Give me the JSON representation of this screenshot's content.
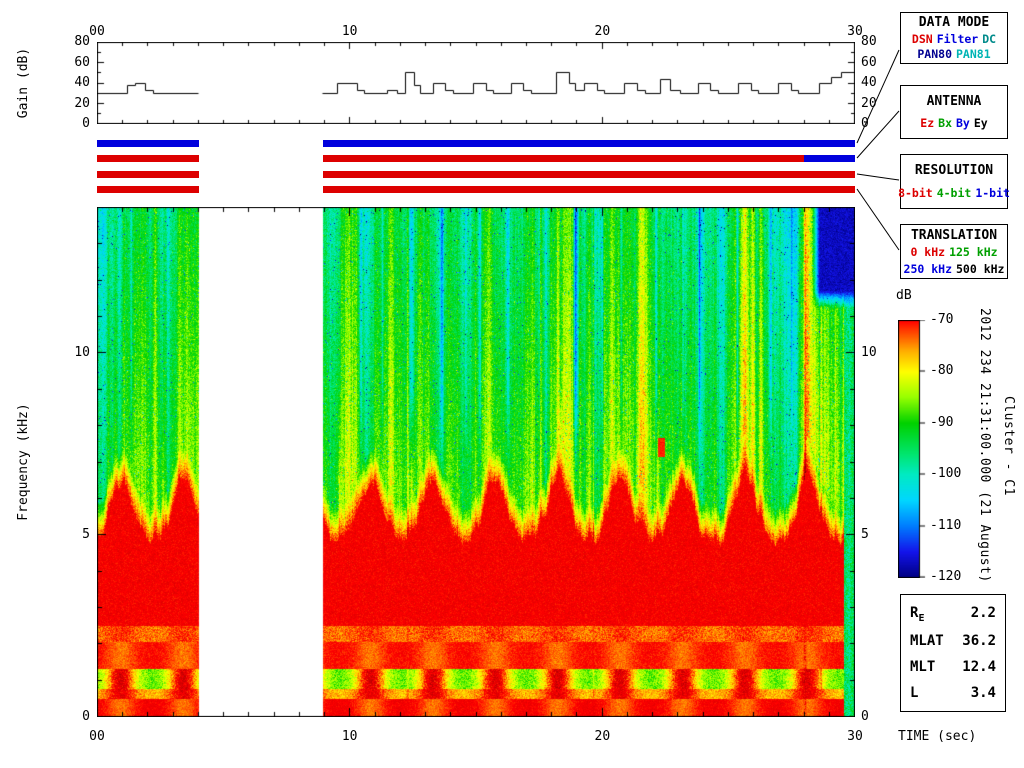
{
  "annotations": {
    "datetime_vertical": "2012 234 21:31:00.000 (21 August)",
    "spacecraft_vertical": "Cluster - C1"
  },
  "chart_data": [
    {
      "id": "gain",
      "type": "line",
      "title": "",
      "ylabel": "Gain (dB)",
      "xlabel": "",
      "ylim": [
        0,
        80
      ],
      "xlim": [
        0,
        30
      ],
      "yticks": [
        "0",
        "20",
        "40",
        "60",
        "80"
      ],
      "xticks": [
        "00",
        "10",
        "20",
        "30"
      ],
      "line_style": "step",
      "segments": [
        [
          [
            0,
            30
          ],
          [
            1.2,
            30
          ],
          [
            1.2,
            38
          ],
          [
            1.5,
            38
          ],
          [
            1.5,
            40
          ],
          [
            1.9,
            40
          ],
          [
            1.9,
            33
          ],
          [
            2.2,
            33
          ],
          [
            2.2,
            30
          ],
          [
            4.02,
            30
          ]
        ],
        [
          [
            8.93,
            30
          ],
          [
            9.5,
            30
          ],
          [
            9.5,
            40
          ],
          [
            10.3,
            40
          ],
          [
            10.3,
            33
          ],
          [
            10.6,
            33
          ],
          [
            10.6,
            30
          ],
          [
            11.5,
            30
          ],
          [
            11.5,
            33
          ],
          [
            11.9,
            33
          ],
          [
            11.9,
            30
          ],
          [
            12.2,
            30
          ],
          [
            12.2,
            50
          ],
          [
            12.55,
            50
          ],
          [
            12.55,
            38
          ],
          [
            12.8,
            38
          ],
          [
            12.8,
            30
          ],
          [
            13.3,
            30
          ],
          [
            13.3,
            40
          ],
          [
            13.8,
            40
          ],
          [
            13.8,
            33
          ],
          [
            14.1,
            33
          ],
          [
            14.1,
            30
          ],
          [
            14.9,
            30
          ],
          [
            14.9,
            40
          ],
          [
            15.4,
            40
          ],
          [
            15.4,
            33
          ],
          [
            15.7,
            33
          ],
          [
            15.7,
            30
          ],
          [
            16.4,
            30
          ],
          [
            16.4,
            40
          ],
          [
            16.9,
            40
          ],
          [
            16.9,
            33
          ],
          [
            17.2,
            33
          ],
          [
            17.2,
            30
          ],
          [
            18.2,
            30
          ],
          [
            18.2,
            50
          ],
          [
            18.7,
            50
          ],
          [
            18.7,
            40
          ],
          [
            18.95,
            40
          ],
          [
            18.95,
            33
          ],
          [
            19.3,
            33
          ],
          [
            19.3,
            40
          ],
          [
            19.8,
            40
          ],
          [
            19.8,
            33
          ],
          [
            20.1,
            33
          ],
          [
            20.1,
            30
          ],
          [
            20.9,
            30
          ],
          [
            20.9,
            40
          ],
          [
            21.4,
            40
          ],
          [
            21.4,
            33
          ],
          [
            21.7,
            33
          ],
          [
            21.7,
            30
          ],
          [
            22.3,
            30
          ],
          [
            22.3,
            43
          ],
          [
            22.7,
            43
          ],
          [
            22.7,
            33
          ],
          [
            23.1,
            33
          ],
          [
            23.1,
            30
          ],
          [
            23.8,
            30
          ],
          [
            23.8,
            40
          ],
          [
            24.3,
            40
          ],
          [
            24.3,
            33
          ],
          [
            24.6,
            33
          ],
          [
            24.6,
            30
          ],
          [
            25.4,
            30
          ],
          [
            25.4,
            40
          ],
          [
            25.9,
            40
          ],
          [
            25.9,
            33
          ],
          [
            26.2,
            33
          ],
          [
            26.2,
            30
          ],
          [
            27.0,
            30
          ],
          [
            27.0,
            40
          ],
          [
            27.5,
            40
          ],
          [
            27.5,
            33
          ],
          [
            27.8,
            33
          ],
          [
            27.8,
            30
          ],
          [
            28.6,
            30
          ],
          [
            28.6,
            40
          ],
          [
            29.1,
            40
          ],
          [
            29.1,
            45
          ],
          [
            29.5,
            45
          ],
          [
            29.5,
            50
          ],
          [
            30,
            50
          ]
        ]
      ]
    },
    {
      "id": "spectrogram",
      "type": "heatmap",
      "ylabel": "Frequency (kHz)",
      "xlabel": "TIME (sec)",
      "xlim": [
        0,
        30
      ],
      "ylim": [
        0,
        14
      ],
      "yticks": [
        "0",
        "5",
        "10"
      ],
      "xticks": [
        "00",
        "10",
        "20",
        "30"
      ],
      "colorbar_label": "dB",
      "colorbar_ticks": [
        "-70",
        "-80",
        "-90",
        "-100",
        "-110",
        "-120"
      ],
      "db_range": [
        -120,
        -70
      ],
      "data_gap_sec": [
        4.02,
        8.93
      ],
      "mode_change_sec": 28.0,
      "modulation_period_sec": 2.47,
      "intense_band": {
        "f_top_khz_min": 4.85,
        "f_top_khz_max": 6.5,
        "db": -69
      },
      "background": {
        "db_at_7khz": -89,
        "db_at_13khz": -94
      },
      "dark_patch": {
        "t_range": [
          28.3,
          30
        ],
        "f_range": [
          11.2,
          14
        ],
        "db": -117
      },
      "red_spot": {
        "t": 22.35,
        "f": 7.4,
        "db": -71
      },
      "blue_streaks": [
        {
          "t": 1.35,
          "w": 0.07,
          "depth": 8
        },
        {
          "t": 2.6,
          "w": 0.06,
          "depth": 7
        },
        {
          "t": 9.6,
          "w": 0.06,
          "depth": 7
        },
        {
          "t": 10.45,
          "w": 0.09,
          "depth": 10
        },
        {
          "t": 11.3,
          "w": 0.07,
          "depth": 9
        },
        {
          "t": 12.45,
          "w": 0.15,
          "depth": 16
        },
        {
          "t": 13.65,
          "w": 0.1,
          "depth": 13
        },
        {
          "t": 14.6,
          "w": 0.06,
          "depth": 8
        },
        {
          "t": 15.15,
          "w": 0.07,
          "depth": 9
        },
        {
          "t": 16.25,
          "w": 0.1,
          "depth": 11
        },
        {
          "t": 17.5,
          "w": 0.06,
          "depth": 8
        },
        {
          "t": 18.35,
          "w": 0.12,
          "depth": 14
        },
        {
          "t": 18.95,
          "w": 0.13,
          "depth": 18
        },
        {
          "t": 20.0,
          "w": 0.06,
          "depth": 8
        },
        {
          "t": 20.75,
          "w": 0.08,
          "depth": 10
        },
        {
          "t": 22.15,
          "w": 0.1,
          "depth": 12
        },
        {
          "t": 23.2,
          "w": 0.06,
          "depth": 8
        },
        {
          "t": 23.85,
          "w": 0.08,
          "depth": 10
        },
        {
          "t": 25.35,
          "w": 0.08,
          "depth": 11
        },
        {
          "t": 26.65,
          "w": 0.09,
          "depth": 11
        },
        {
          "t": 27.5,
          "w": 0.06,
          "depth": 8
        }
      ],
      "bright_lines": [
        {
          "t": 12.3,
          "w": 0.06,
          "amp": 7
        },
        {
          "t": 19.65,
          "w": 0.05,
          "amp": 6
        },
        {
          "t": 28.02,
          "w": 0.08,
          "amp": 14
        },
        {
          "t": 28.66,
          "w": 0.05,
          "amp": 8
        }
      ]
    }
  ],
  "status_bars": {
    "rows": [
      {
        "name": "data-mode",
        "segments": [
          {
            "t0": 0,
            "t1": 4.02,
            "color": "#0000dd"
          },
          {
            "t0": 8.93,
            "t1": 30,
            "color": "#0000dd"
          }
        ]
      },
      {
        "name": "antenna",
        "segments": [
          {
            "t0": 0,
            "t1": 4.02,
            "color": "#dd0000"
          },
          {
            "t0": 8.93,
            "t1": 28,
            "color": "#dd0000"
          },
          {
            "t0": 28,
            "t1": 30,
            "color": "#0000dd"
          }
        ]
      },
      {
        "name": "resolution",
        "segments": [
          {
            "t0": 0,
            "t1": 4.02,
            "color": "#dd0000"
          },
          {
            "t0": 8.93,
            "t1": 30,
            "color": "#dd0000"
          }
        ]
      },
      {
        "name": "translation",
        "segments": [
          {
            "t0": 0,
            "t1": 4.02,
            "color": "#dd0000"
          },
          {
            "t0": 8.93,
            "t1": 30,
            "color": "#dd0000"
          }
        ]
      }
    ]
  },
  "legend_boxes": [
    {
      "name": "data-mode",
      "title": "DATA MODE",
      "rows": [
        [
          {
            "text": "DSN",
            "color": "#dd0000"
          },
          {
            "text": "Filter",
            "color": "#0000dd"
          },
          {
            "text": "DC",
            "color": "#008b8b"
          }
        ],
        [
          {
            "text": "PAN80",
            "color": "#000090"
          },
          {
            "text": "PAN81",
            "color": "#00b4b4"
          }
        ]
      ]
    },
    {
      "name": "antenna",
      "title": "ANTENNA",
      "rows": [
        [
          {
            "text": "Ez",
            "color": "#dd0000"
          },
          {
            "text": "Bx",
            "color": "#00a000"
          },
          {
            "text": "By",
            "color": "#0000dd"
          },
          {
            "text": "Ey",
            "color": "#000000"
          }
        ]
      ]
    },
    {
      "name": "resolution",
      "title": "RESOLUTION",
      "rows": [
        [
          {
            "text": "8-bit",
            "color": "#dd0000"
          },
          {
            "text": "4-bit",
            "color": "#00a000"
          },
          {
            "text": "1-bit",
            "color": "#0000dd"
          }
        ]
      ]
    },
    {
      "name": "translation",
      "title": "TRANSLATION",
      "rows": [
        [
          {
            "text": "0 kHz",
            "color": "#dd0000"
          },
          {
            "text": "125 kHz",
            "color": "#00a000"
          }
        ],
        [
          {
            "text": "250 kHz",
            "color": "#0000dd"
          },
          {
            "text": "500 kHz",
            "color": "#000000"
          }
        ]
      ]
    }
  ],
  "info_box": {
    "rows": [
      {
        "label": "R",
        "subscript": "E",
        "value": "2.2"
      },
      {
        "label": "MLAT",
        "subscript": "",
        "value": "36.2"
      },
      {
        "label": "MLT",
        "subscript": "",
        "value": "12.4"
      },
      {
        "label": "L",
        "subscript": "",
        "value": "3.4"
      }
    ]
  }
}
